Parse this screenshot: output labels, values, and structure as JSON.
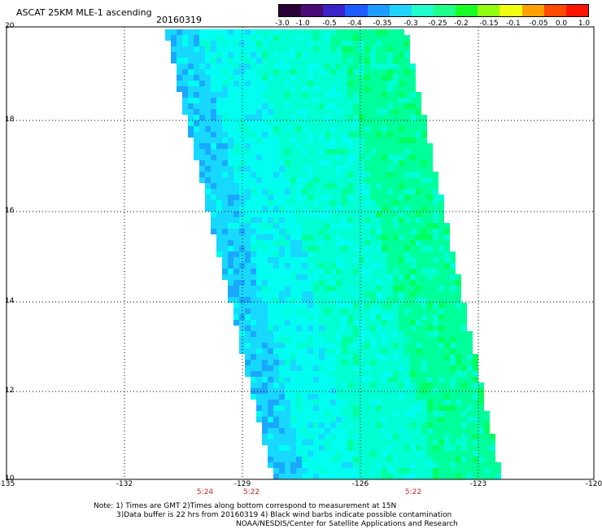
{
  "header": {
    "title": "ASCAT 25KM MLE-1 ascending",
    "date": "20160319"
  },
  "colorbar": {
    "tick_labels": [
      "-3.0",
      "-1.0",
      "-0.5",
      "-0.4",
      "-0.35",
      "-0.3",
      "-0.25",
      "-0.2",
      "-0.15",
      "-0.1",
      "-0.05",
      "0.0",
      "1.0"
    ],
    "colors": [
      "#2a0036",
      "#4c0a74",
      "#3a23c8",
      "#1e5cff",
      "#1e9cff",
      "#20d4ff",
      "#22ffcc",
      "#20ff8a",
      "#18ff28",
      "#90ff10",
      "#f0ff10",
      "#ffa000",
      "#ff4a00",
      "#ff1400"
    ]
  },
  "map": {
    "lat_labels": [
      "20",
      "18",
      "16",
      "14",
      "12",
      "10"
    ],
    "lon_labels": [
      "-135",
      "-132",
      "-129",
      "-126",
      "-123",
      "-120"
    ],
    "time_labels": [
      "5:24",
      "5:22",
      "5:22"
    ],
    "swath_colors": {
      "background": "#00fff0",
      "dark": "#1aa8ff",
      "mid": "#17d8ff",
      "light": "#00ffd2",
      "green": "#00ff9a",
      "greener": "#00ff60"
    }
  },
  "notes": {
    "line1": "Note: 1) Times are GMT 2)Times along bottom correspond to measurement at 15N",
    "line2": "3)Data buffer is 22 hrs from 20160319 4) Black wind barbs indicate possible contamination",
    "line3": "NOAA/NESDIS/Center for Satellite Applications and Research"
  }
}
